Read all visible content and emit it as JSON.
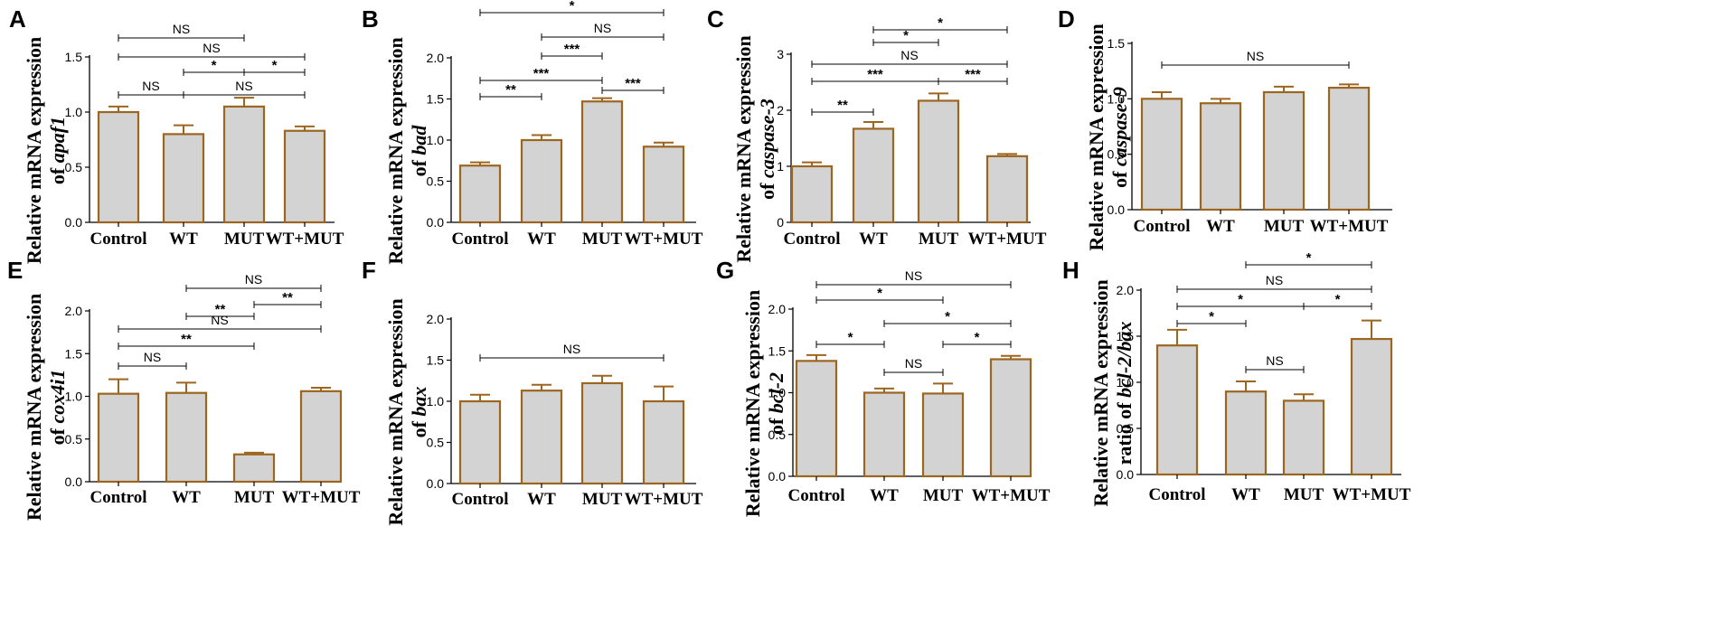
{
  "figure": {
    "bar_fill": "#d3d3d3",
    "bar_stroke": "#9c6520",
    "axis_color": "#000000",
    "bracket_color": "#000000"
  },
  "chart_data": [
    {
      "type": "bar",
      "panel": "A",
      "ylabel": "Relative mRNA expression",
      "ylabel_line2_prefix": "of ",
      "ylabel_line2_italic": "apaf1",
      "categories": [
        "Control",
        "WT",
        "MUT",
        "WT+MUT"
      ],
      "values": [
        1.0,
        0.8,
        1.05,
        0.83
      ],
      "errors": [
        0.05,
        0.08,
        0.08,
        0.04
      ],
      "ylim": [
        0,
        1.5
      ],
      "yticks": [
        "0.0",
        "0.5",
        "1.0",
        "1.5"
      ],
      "significance": [
        {
          "from": 0,
          "to": 2,
          "label": "NS"
        },
        {
          "from": 0,
          "to": 3,
          "label": "NS"
        },
        {
          "from": 1,
          "to": 2,
          "label": "*"
        },
        {
          "from": 2,
          "to": 3,
          "label": "*"
        },
        {
          "from": 0,
          "to": 1,
          "label": "NS"
        },
        {
          "from": 1,
          "to": 3,
          "label": "NS"
        }
      ]
    },
    {
      "type": "bar",
      "panel": "B",
      "ylabel": "Relative mRNA expression",
      "ylabel_line2_prefix": "of ",
      "ylabel_line2_italic": "bad",
      "categories": [
        "Control",
        "WT",
        "MUT",
        "WT+MUT"
      ],
      "values": [
        0.69,
        1.0,
        1.47,
        0.92
      ],
      "errors": [
        0.04,
        0.06,
        0.04,
        0.05
      ],
      "ylim": [
        0,
        2.0
      ],
      "yticks": [
        "0.0",
        "0.5",
        "1.0",
        "1.5",
        "2.0"
      ],
      "significance": [
        {
          "from": 0,
          "to": 3,
          "label": "*"
        },
        {
          "from": 1,
          "to": 3,
          "label": "NS"
        },
        {
          "from": 1,
          "to": 2,
          "label": "***"
        },
        {
          "from": 0,
          "to": 2,
          "label": "***"
        },
        {
          "from": 2,
          "to": 3,
          "label": "***"
        },
        {
          "from": 0,
          "to": 1,
          "label": "**"
        }
      ]
    },
    {
      "type": "bar",
      "panel": "C",
      "ylabel": "Relative mRNA expression",
      "ylabel_line2_prefix": "of ",
      "ylabel_line2_italic": "caspase-3",
      "categories": [
        "Control",
        "WT",
        "MUT",
        "WT+MUT"
      ],
      "values": [
        1.0,
        1.67,
        2.17,
        1.18
      ],
      "errors": [
        0.07,
        0.12,
        0.13,
        0.04
      ],
      "ylim": [
        0,
        3
      ],
      "yticks": [
        "0",
        "1",
        "2",
        "3"
      ],
      "significance": [
        {
          "from": 1,
          "to": 3,
          "label": "*"
        },
        {
          "from": 1,
          "to": 2,
          "label": "*"
        },
        {
          "from": 0,
          "to": 3,
          "label": "NS"
        },
        {
          "from": 0,
          "to": 2,
          "label": "***"
        },
        {
          "from": 2,
          "to": 3,
          "label": "***"
        },
        {
          "from": 0,
          "to": 1,
          "label": "**"
        }
      ]
    },
    {
      "type": "bar",
      "panel": "D",
      "ylabel": "Relative mRNA expression",
      "ylabel_line2_prefix": "of ",
      "ylabel_line2_italic": "caspase-9",
      "categories": [
        "Control",
        "WT",
        "MUT",
        "WT+MUT"
      ],
      "values": [
        1.0,
        0.96,
        1.06,
        1.1
      ],
      "errors": [
        0.06,
        0.04,
        0.05,
        0.03
      ],
      "ylim": [
        0,
        1.5
      ],
      "yticks": [
        "0.0",
        "0.5",
        "1.0",
        "1.5"
      ],
      "significance": [
        {
          "from": 0,
          "to": 3,
          "label": "NS"
        }
      ]
    },
    {
      "type": "bar",
      "panel": "E",
      "ylabel": "Relative mRNA expression",
      "ylabel_line2_prefix": "of ",
      "ylabel_line2_italic": "cox4i1",
      "categories": [
        "Control",
        "WT",
        "MUT",
        "WT+MUT"
      ],
      "values": [
        1.03,
        1.04,
        0.32,
        1.06
      ],
      "errors": [
        0.17,
        0.12,
        0.02,
        0.04
      ],
      "ylim": [
        0,
        2.0
      ],
      "yticks": [
        "0.0",
        "0.5",
        "1.0",
        "1.5",
        "2.0"
      ],
      "significance": [
        {
          "from": 1,
          "to": 3,
          "label": "NS"
        },
        {
          "from": 2,
          "to": 3,
          "label": "**"
        },
        {
          "from": 1,
          "to": 2,
          "label": "**"
        },
        {
          "from": 0,
          "to": 3,
          "label": "NS"
        },
        {
          "from": 0,
          "to": 2,
          "label": "**"
        },
        {
          "from": 0,
          "to": 1,
          "label": "NS"
        }
      ]
    },
    {
      "type": "bar",
      "panel": "F",
      "ylabel": "Relative mRNA expression",
      "ylabel_line2_prefix": "of ",
      "ylabel_line2_italic": "bax",
      "categories": [
        "Control",
        "WT",
        "MUT",
        "WT+MUT"
      ],
      "values": [
        1.0,
        1.13,
        1.22,
        1.0
      ],
      "errors": [
        0.08,
        0.07,
        0.09,
        0.18
      ],
      "ylim": [
        0,
        2.0
      ],
      "yticks": [
        "0.0",
        "0.5",
        "1.0",
        "1.5",
        "2.0"
      ],
      "significance": [
        {
          "from": 0,
          "to": 3,
          "label": "NS"
        }
      ]
    },
    {
      "type": "bar",
      "panel": "G",
      "ylabel": "Relative mRNA expression",
      "ylabel_line2_prefix": "of ",
      "ylabel_line2_italic": "bcl-2",
      "categories": [
        "Control",
        "WT",
        "MUT",
        "WT+MUT"
      ],
      "values": [
        1.38,
        1.0,
        0.99,
        1.4
      ],
      "errors": [
        0.07,
        0.05,
        0.12,
        0.04
      ],
      "ylim": [
        0,
        2.0
      ],
      "yticks": [
        "0.0",
        "0.5",
        "1.0",
        "1.5",
        "2.0"
      ],
      "significance": [
        {
          "from": 0,
          "to": 3,
          "label": "NS"
        },
        {
          "from": 0,
          "to": 2,
          "label": "*"
        },
        {
          "from": 1,
          "to": 3,
          "label": "*"
        },
        {
          "from": 0,
          "to": 1,
          "label": "*"
        },
        {
          "from": 2,
          "to": 3,
          "label": "*"
        },
        {
          "from": 1,
          "to": 2,
          "label": "NS"
        }
      ]
    },
    {
      "type": "bar",
      "panel": "H",
      "ylabel": "Relative mRNA expression",
      "ylabel_line2_prefix": "ratio of ",
      "ylabel_line2_italic": "bcl-2/bax",
      "categories": [
        "Control",
        "WT",
        "MUT",
        "WT+MUT"
      ],
      "values": [
        1.4,
        0.9,
        0.8,
        1.47
      ],
      "errors": [
        0.17,
        0.11,
        0.07,
        0.2
      ],
      "ylim": [
        0,
        2.0
      ],
      "yticks": [
        "0.0",
        "0.5",
        "1.0",
        "1.5",
        "2.0"
      ],
      "significance": [
        {
          "from": 1,
          "to": 3,
          "label": "*"
        },
        {
          "from": 0,
          "to": 3,
          "label": "NS"
        },
        {
          "from": 0,
          "to": 2,
          "label": "*"
        },
        {
          "from": 2,
          "to": 3,
          "label": "*"
        },
        {
          "from": 0,
          "to": 1,
          "label": "*"
        },
        {
          "from": 1,
          "to": 2,
          "label": "NS"
        }
      ]
    }
  ]
}
